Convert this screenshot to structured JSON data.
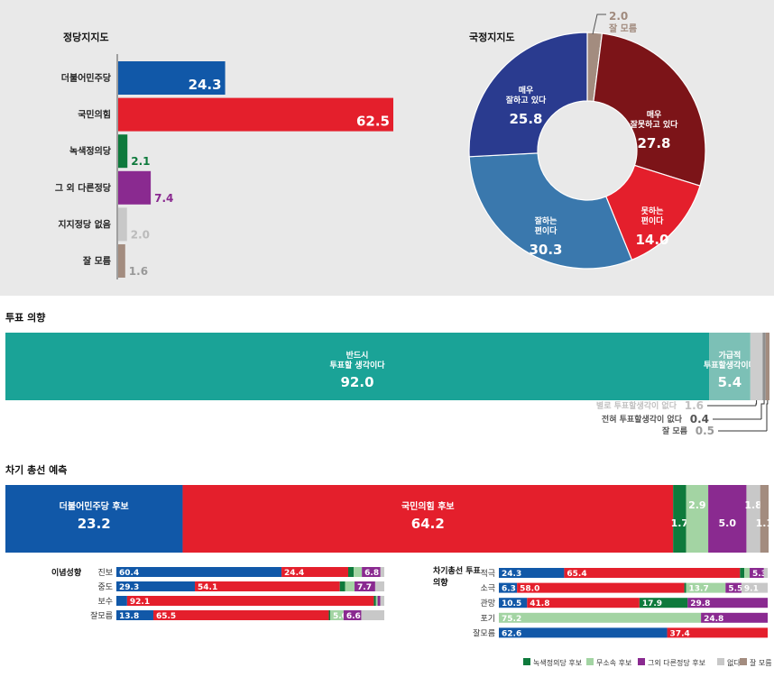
{
  "colors": {
    "blue": "#1158a8",
    "red": "#e41f2c",
    "green": "#0e7a3c",
    "purple": "#8a2a90",
    "lightgray": "#c8c8c8",
    "brown": "#a38c7f",
    "teal": "#1aa397",
    "lightgreen": "#a3d4a3",
    "navy": "#2a3b8f",
    "darkred": "#7c1418",
    "steel": "#3a78ad",
    "midgray": "#666666"
  },
  "chart_data": [
    {
      "id": "party",
      "type": "bar",
      "title": "정당지지도",
      "categories": [
        "더불어민주당",
        "국민의힘",
        "녹색정의당",
        "그 외 다른정당",
        "지지정당 없음",
        "잘 모름"
      ],
      "values": [
        24.3,
        62.5,
        2.1,
        7.4,
        2.0,
        1.6
      ],
      "labels": [
        "24.3",
        "62.5",
        "2.1",
        "7.4",
        "2.0",
        "1.6"
      ]
    },
    {
      "id": "approval",
      "type": "pie",
      "title": "국정지지도",
      "slices": [
        {
          "lines": [
            "잘 모름"
          ],
          "value": 2.0,
          "label": "2.0"
        },
        {
          "lines": [
            "매우",
            "잘못하고 있다"
          ],
          "value": 27.8,
          "label": "27.8"
        },
        {
          "lines": [
            "못하는",
            "편이다"
          ],
          "value": 14.0,
          "label": "14.0"
        },
        {
          "lines": [
            "잘하는",
            "편이다"
          ],
          "value": 30.3,
          "label": "30.3"
        },
        {
          "lines": [
            "매우",
            "잘하고 있다"
          ],
          "value": 25.8,
          "label": "25.8"
        }
      ]
    },
    {
      "id": "vote",
      "type": "bar",
      "title": "투표 의향",
      "segments": [
        {
          "lines": [
            "반드시",
            "투표할 생각이다"
          ],
          "value": 92.0,
          "label": "92.0"
        },
        {
          "lines": [
            "가급적",
            "투표할생각이다"
          ],
          "value": 5.4,
          "label": "5.4"
        },
        {
          "lines": [
            "별로 투표할생각이 없다"
          ],
          "value": 1.6,
          "label": "1.6"
        },
        {
          "lines": [
            "전혀 투표할생각이 없다"
          ],
          "value": 0.4,
          "label": "0.4"
        },
        {
          "lines": [
            "잘 모름"
          ],
          "value": 0.5,
          "label": "0.5"
        }
      ]
    },
    {
      "id": "forecast",
      "type": "bar",
      "title": "차기 총선 예측",
      "segments": [
        {
          "lines": [
            "더불어민주당 후보"
          ],
          "value": 23.2,
          "label": "23.2"
        },
        {
          "lines": [
            "국민의힘 후보"
          ],
          "value": 64.2,
          "label": "64.2"
        },
        {
          "lines": [
            ""
          ],
          "value": 1.7,
          "label": "1.7"
        },
        {
          "lines": [
            ""
          ],
          "value": 2.9,
          "label": "2.9"
        },
        {
          "lines": [
            ""
          ],
          "value": 5.0,
          "label": "5.0"
        },
        {
          "lines": [
            ""
          ],
          "value": 1.8,
          "label": "1.8"
        },
        {
          "lines": [
            ""
          ],
          "value": 1.1,
          "label": "1.1"
        }
      ]
    },
    {
      "id": "ideology",
      "type": "bar",
      "title": "이념성향",
      "rows": [
        {
          "name": "진보",
          "values": [
            60.4,
            24.4,
            2.0,
            3.0,
            6.8,
            1.4
          ],
          "labels": [
            "60.4",
            "24.4",
            "",
            "",
            "6.8",
            ""
          ]
        },
        {
          "name": "중도",
          "values": [
            29.3,
            54.1,
            2.0,
            3.5,
            7.7,
            3.4
          ],
          "labels": [
            "29.3",
            "54.1",
            "",
            "",
            "7.7",
            ""
          ]
        },
        {
          "name": "보수",
          "values": [
            4.0,
            92.1,
            0.8,
            0.6,
            1.0,
            1.5
          ],
          "labels": [
            "",
            "92.1",
            "",
            "",
            "",
            ""
          ]
        },
        {
          "name": "잘모름",
          "values": [
            13.8,
            65.5,
            0.5,
            5.0,
            6.6,
            8.6
          ],
          "labels": [
            "13.8",
            "65.5",
            "",
            "5.0",
            "6.6",
            ""
          ]
        }
      ]
    },
    {
      "id": "intent",
      "type": "bar",
      "title": "차기총선 투표의향",
      "rows": [
        {
          "name": "적극",
          "values": [
            24.3,
            65.4,
            1.6,
            2.0,
            5.3,
            1.4
          ],
          "labels": [
            "24.3",
            "65.4",
            "",
            "",
            "5.3",
            ""
          ]
        },
        {
          "name": "소극",
          "values": [
            6.3,
            58.0,
            0.6,
            13.7,
            5.5,
            9.1
          ],
          "labels": [
            "6.3",
            "58.0",
            "",
            "13.7",
            "5.5",
            "9.1"
          ]
        },
        {
          "name": "관망",
          "values": [
            10.5,
            41.8,
            17.9,
            0.0,
            29.8,
            0.0
          ],
          "labels": [
            "10.5",
            "41.8",
            "17.9",
            "",
            "29.8",
            ""
          ]
        },
        {
          "name": "포기",
          "values": [
            0.0,
            0.0,
            0.0,
            75.2,
            24.8,
            0.0
          ],
          "labels": [
            "",
            "",
            "",
            "75.2",
            "24.8",
            ""
          ]
        },
        {
          "name": "잘모름",
          "values": [
            62.6,
            37.4,
            0.0,
            0.0,
            0.0,
            0.0
          ],
          "labels": [
            "62.6",
            "37.4",
            "",
            "",
            "",
            ""
          ]
        }
      ]
    },
    {
      "id": "legend",
      "type": "table",
      "items": [
        {
          "name": "녹색정의당 후보",
          "color": "#0e7a3c"
        },
        {
          "name": "무소속 후보",
          "color": "#a3d4a3"
        },
        {
          "name": "그외 다른정당 후보",
          "color": "#8a2a90"
        },
        {
          "name": "없다",
          "color": "#c8c8c8"
        },
        {
          "name": "잘 모름",
          "color": "#a38c7f"
        }
      ]
    }
  ]
}
